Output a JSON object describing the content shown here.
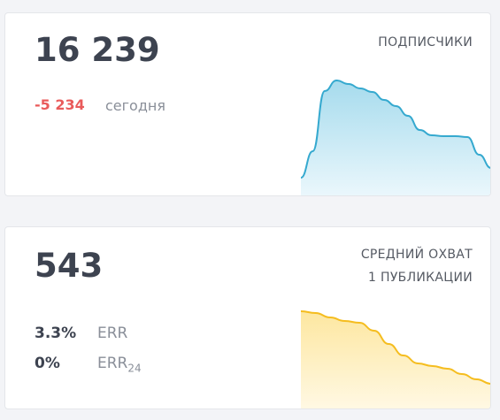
{
  "cards": [
    {
      "value": "16 239",
      "change": "-5 234",
      "change_label": "сегодня",
      "title": [
        "ПОДПИСЧИКИ"
      ],
      "sparkline": {
        "type": "area",
        "line_color": "#35a9cf",
        "fill_top": "#a6dbed",
        "fill_bottom": "#eaf7fc",
        "values": [
          20,
          50,
          118,
          130,
          126,
          121,
          117,
          108,
          101,
          90,
          74,
          68,
          67,
          67,
          66,
          46,
          31
        ]
      }
    },
    {
      "value": "543",
      "title": [
        "СРЕДНИЙ ОХВАТ",
        "1 ПУБЛИКАЦИИ"
      ],
      "metrics": [
        {
          "value": "3.3%",
          "label": "ERR"
        },
        {
          "value": "0%",
          "label": "ERR",
          "subscript": "24"
        }
      ],
      "sparkline": {
        "type": "area",
        "line_color": "#f5bd1f",
        "fill_top": "#fde7a0",
        "fill_bottom": "#fff8e3",
        "values": [
          110,
          108,
          103,
          99,
          97,
          88,
          73,
          60,
          51,
          48,
          45,
          39,
          33,
          28
        ]
      }
    }
  ]
}
